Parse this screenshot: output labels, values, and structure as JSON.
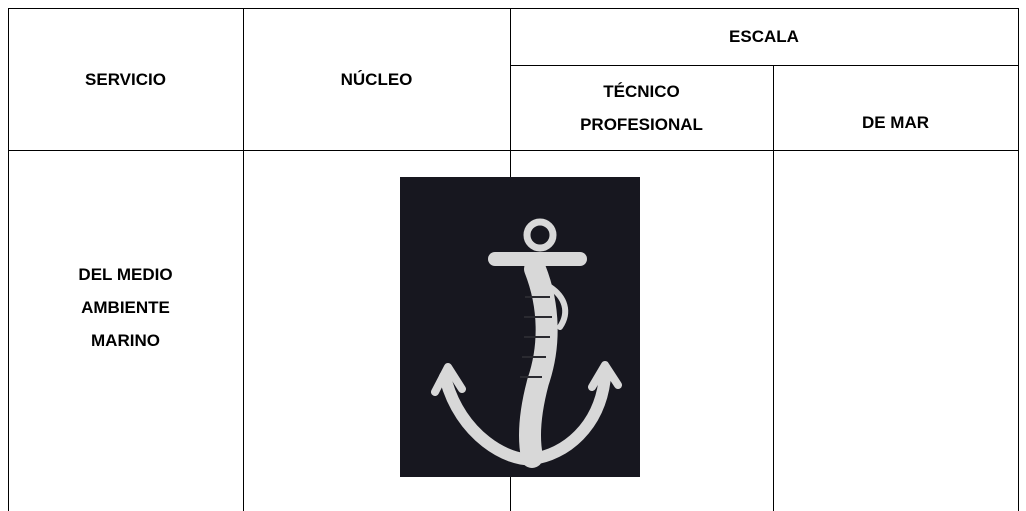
{
  "table": {
    "header": {
      "service": "SERVICIO",
      "nucleus": "NÚCLEO",
      "scale": "ESCALA",
      "scale_columns": [
        "TÉCNICO PROFESIONAL",
        "DE MAR"
      ]
    },
    "rows": [
      [
        "DEL MEDIO AMBIENTE MARINO"
      ]
    ]
  }
}
